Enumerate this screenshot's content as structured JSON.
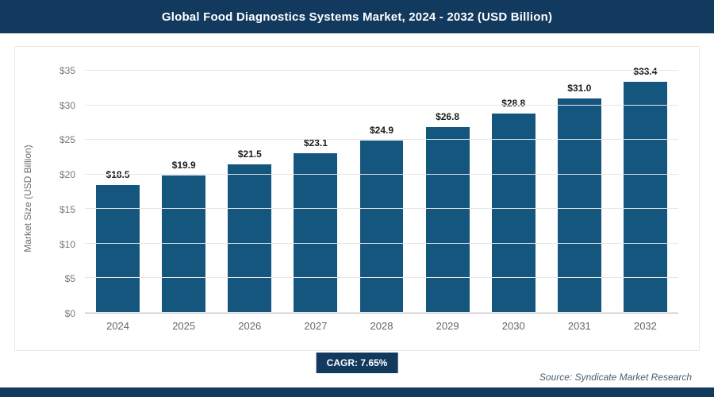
{
  "header": {
    "title": "Global Food Diagnostics Systems Market, 2024 - 2032 (USD Billion)"
  },
  "chart_data": {
    "type": "bar",
    "title": "Global Food Diagnostics Systems Market, 2024 - 2032 (USD Billion)",
    "categories": [
      "2024",
      "2025",
      "2026",
      "2027",
      "2028",
      "2029",
      "2030",
      "2031",
      "2032"
    ],
    "values": [
      18.5,
      19.9,
      21.5,
      23.1,
      24.9,
      26.8,
      28.8,
      31.0,
      33.4
    ],
    "value_labels": [
      "$18.5",
      "$19.9",
      "$21.5",
      "$23.1",
      "$24.9",
      "$26.8",
      "$28.8",
      "$31.0",
      "$33.4"
    ],
    "xlabel": "",
    "ylabel": "Market Size (USD Billion)",
    "ylim": [
      0,
      35
    ],
    "ytick_labels": [
      "$0",
      "$5",
      "$10",
      "$15",
      "$20",
      "$25",
      "$30",
      "$35"
    ],
    "grid": true,
    "legend": "none",
    "bar_color": "#14567e"
  },
  "footer": {
    "cagr_label": "CAGR: 7.65%",
    "source": "Source: Syndicate Market Research"
  },
  "colors": {
    "header_bg": "#12395e",
    "bar": "#14567e",
    "badge_bg": "#12395e",
    "gridline": "#e6e6e6"
  }
}
